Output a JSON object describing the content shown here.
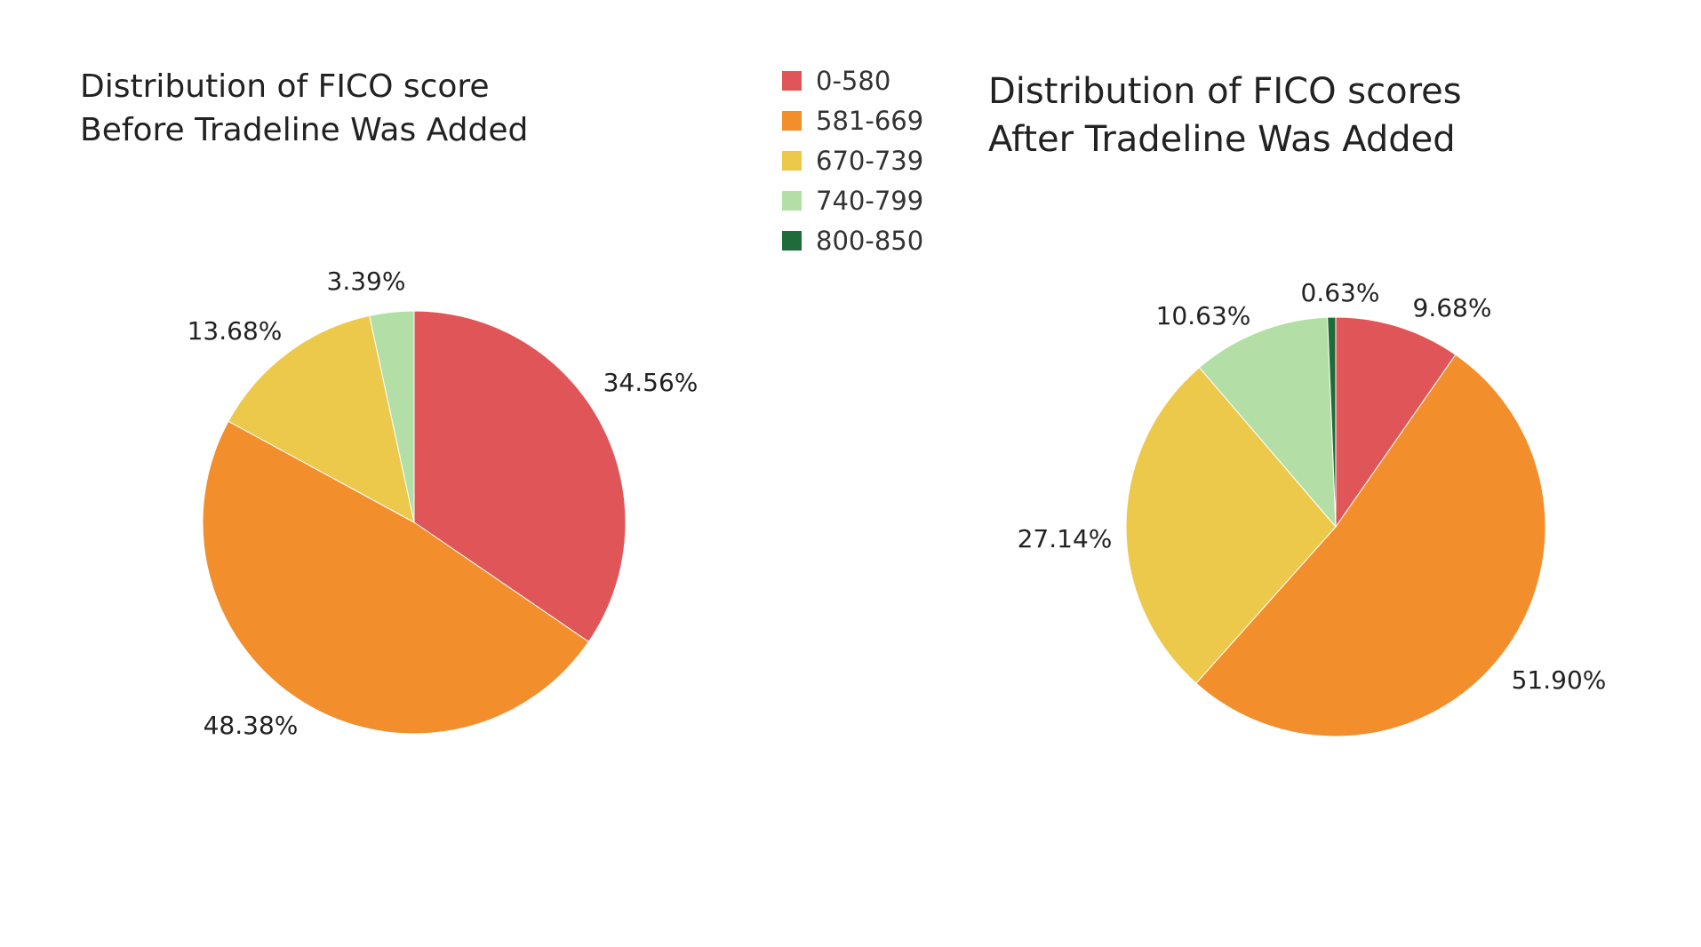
{
  "legend": {
    "items": [
      {
        "label": "0-580",
        "color": "#e05658"
      },
      {
        "label": "581-669",
        "color": "#f28e2c"
      },
      {
        "label": "670-739",
        "color": "#ecc94b"
      },
      {
        "label": "740-799",
        "color": "#b3dfa6"
      },
      {
        "label": "800-850",
        "color": "#1f6b3a"
      }
    ]
  },
  "chart_data": [
    {
      "type": "pie",
      "title": "Distribution of FICO score Before Tradeline Was Added",
      "title_lines": [
        "Distribution of FICO score",
        "Before Tradeline Was Added"
      ],
      "categories": [
        "0-580",
        "581-669",
        "670-739",
        "740-799"
      ],
      "values": [
        34.56,
        48.38,
        13.68,
        3.39
      ],
      "labels": [
        "34.56%",
        "48.38%",
        "13.68%",
        "3.39%"
      ],
      "colors": [
        "#e05658",
        "#f28e2c",
        "#ecc94b",
        "#b3dfa6"
      ],
      "start": "12 o'clock",
      "direction": "clockwise",
      "legend": "top-center"
    },
    {
      "type": "pie",
      "title": "Distribution of FICO scores After Tradeline Was Added",
      "title_lines": [
        "Distribution of FICO scores",
        "After Tradeline Was Added"
      ],
      "categories": [
        "0-580",
        "581-669",
        "670-739",
        "740-799",
        "800-850"
      ],
      "values": [
        9.68,
        51.9,
        27.14,
        10.63,
        0.63
      ],
      "labels": [
        "9.68%",
        "51.90%",
        "27.14%",
        "10.63%",
        "0.63%"
      ],
      "colors": [
        "#e05658",
        "#f28e2c",
        "#ecc94b",
        "#b3dfa6",
        "#1f6b3a"
      ],
      "start": "12 o'clock",
      "direction": "clockwise",
      "legend": "top-center"
    }
  ]
}
